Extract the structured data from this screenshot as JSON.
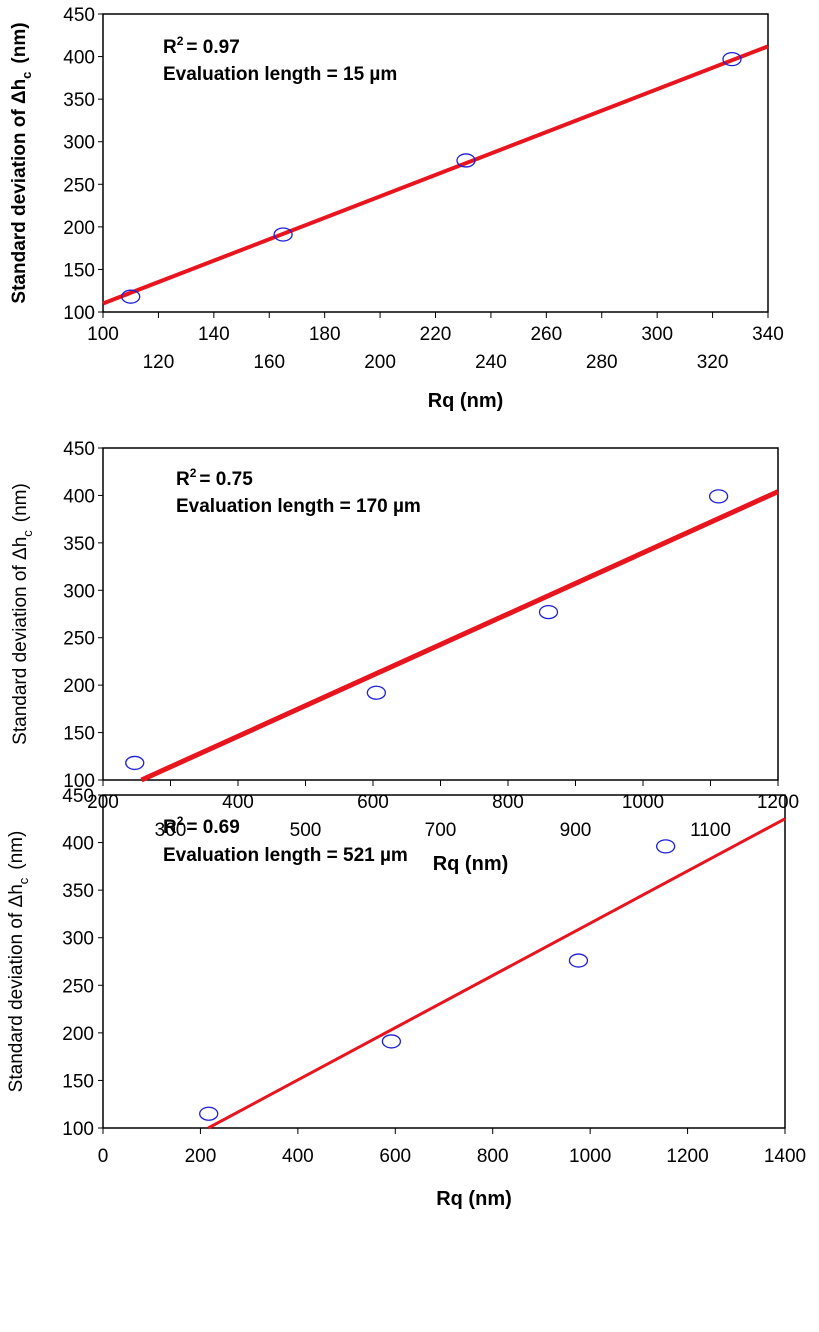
{
  "chart_data": [
    {
      "type": "scatter",
      "xlabel": "Rq (nm)",
      "ylabel": "Standard deviation of Δh",
      "ylabel_sub": "c",
      "ylabel_unit": "(nm)",
      "xlim": [
        100,
        340
      ],
      "ylim": [
        100,
        450
      ],
      "x_ticks_top_row": [
        "100",
        "140",
        "180",
        "220",
        "260",
        "300",
        "340"
      ],
      "x_ticks_bottom_row": [
        "120",
        "160",
        "200",
        "240",
        "280",
        "320"
      ],
      "y_ticks": [
        "100",
        "150",
        "200",
        "250",
        "300",
        "350",
        "400",
        "450"
      ],
      "annotation_r2": "= 0.97",
      "annotation_length": "Evaluation length = 15 µm",
      "points": [
        {
          "x": 110,
          "y": 118
        },
        {
          "x": 165,
          "y": 191
        },
        {
          "x": 231,
          "y": 278
        },
        {
          "x": 327,
          "y": 397
        }
      ],
      "fit_line": [
        {
          "x": 100,
          "y": 110
        },
        {
          "x": 340,
          "y": 412
        }
      ]
    },
    {
      "type": "scatter",
      "xlabel": "Rq (nm)",
      "ylabel": "Standard deviation of Δh",
      "ylabel_sub": "c",
      "ylabel_unit": "(nm)",
      "xlim": [
        200,
        1200
      ],
      "ylim": [
        100,
        450
      ],
      "x_ticks_top_row": [
        "200",
        "400",
        "600",
        "800",
        "1000",
        "1200"
      ],
      "x_ticks_bottom_row": [
        "300",
        "500",
        "700",
        "900",
        "1100"
      ],
      "y_ticks": [
        "100",
        "150",
        "200",
        "250",
        "300",
        "350",
        "400",
        "450"
      ],
      "annotation_r2": "= 0.75",
      "annotation_length": "Evaluation length = 170 µm",
      "points": [
        {
          "x": 247,
          "y": 118
        },
        {
          "x": 605,
          "y": 192
        },
        {
          "x": 860,
          "y": 277
        },
        {
          "x": 1112,
          "y": 399
        }
      ],
      "fit_line": [
        {
          "x": 257,
          "y": 100
        },
        {
          "x": 1200,
          "y": 404
        }
      ]
    },
    {
      "type": "scatter",
      "xlabel": "Rq (nm)",
      "ylabel": "Standard deviation of Δh",
      "ylabel_sub": "c",
      "ylabel_unit": "(nm)",
      "xlim": [
        0,
        1400
      ],
      "ylim": [
        100,
        450
      ],
      "x_ticks": [
        "0",
        "200",
        "400",
        "600",
        "800",
        "1000",
        "1200",
        "1400"
      ],
      "y_ticks": [
        "100",
        "150",
        "200",
        "250",
        "300",
        "350",
        "400",
        "450"
      ],
      "annotation_r2": "= 0.69",
      "annotation_length": "Evaluation length = 521 µm",
      "points": [
        {
          "x": 217,
          "y": 115
        },
        {
          "x": 592,
          "y": 191
        },
        {
          "x": 976,
          "y": 276
        },
        {
          "x": 1155,
          "y": 396
        }
      ],
      "fit_line": [
        {
          "x": 216,
          "y": 100
        },
        {
          "x": 1400,
          "y": 425
        }
      ]
    }
  ]
}
